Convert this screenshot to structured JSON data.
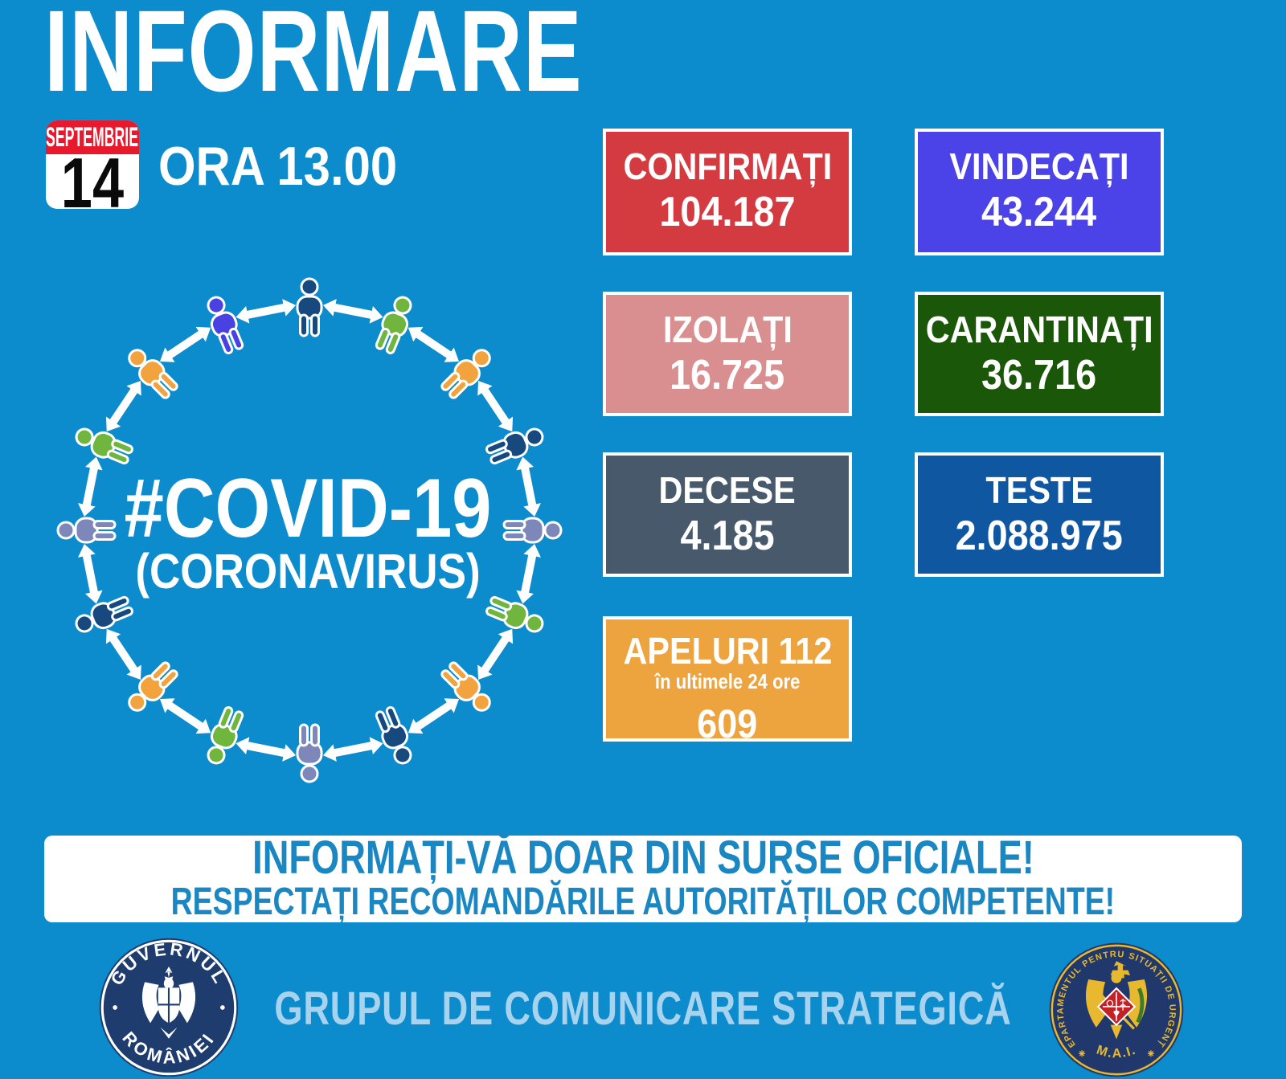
{
  "header": {
    "title": "INFORMARE",
    "time_label": "ORA 13.00"
  },
  "calendar": {
    "month": "SEPTEMBRIE",
    "day": "14"
  },
  "center_graphic": {
    "hashtag": "#COVID-19",
    "subtitle": "(CORONAVIRUS)",
    "person_colors": [
      "#17497f",
      "#6fb53e",
      "#f2a33e",
      "#17497f",
      "#7e87ba",
      "#6fb53e",
      "#f2a33e",
      "#17497f",
      "#7e87ba",
      "#6fb53e",
      "#f2a33e",
      "#17497f",
      "#7e87ba",
      "#6fb53e",
      "#f2a33e",
      "#4a41e2"
    ]
  },
  "stats": [
    {
      "label": "CONFIRMAȚI",
      "value": "104.187",
      "bg": "#d43b40"
    },
    {
      "label": "VINDECAȚI",
      "value": "43.244",
      "bg": "#4b43e8"
    },
    {
      "label": "IZOLAȚI",
      "value": "16.725",
      "bg": "#d98e90"
    },
    {
      "label": "CARANTINAȚI",
      "value": "36.716",
      "bg": "#1a5708"
    },
    {
      "label": "DECESE",
      "value": "4.185",
      "bg": "#48596c"
    },
    {
      "label": "TESTE",
      "value": "2.088.975",
      "bg": "#0f57a0"
    },
    {
      "label": "APELURI 112",
      "sublabel": "în ultimele 24 ore",
      "value": "609",
      "bg": "#eda33e"
    }
  ],
  "banner": {
    "line1": "INFORMAȚI-VĂ DOAR DIN SURSE OFICIALE!",
    "line2": "RESPECTAȚI RECOMANDĂRILE AUTORITĂȚILOR COMPETENTE!"
  },
  "footer": {
    "text": "GRUPUL DE COMUNICARE STRATEGICĂ",
    "gov_logo": {
      "top": "GUVERNUL",
      "bottom": "ROMÂNIEI"
    },
    "dsu_logo": {
      "around": "DEPARTAMENTUL PENTRU SITUAȚII DE URGENȚĂ",
      "bottom": "M.A.I."
    }
  },
  "colors": {
    "background": "#0c8ccc",
    "banner_text": "#1a87c2",
    "footer_text": "#a8d3ee",
    "calendar_red": "#e8182d",
    "gov_navy": "#1e3c6e",
    "dsu_navy": "#20386b",
    "dsu_gold": "#e8b92e",
    "dsu_red": "#c42127",
    "arrow_white": "#ffffff"
  }
}
